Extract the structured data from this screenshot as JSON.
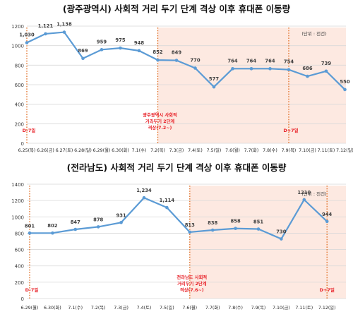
{
  "chart_data": [
    {
      "type": "line",
      "title": "(광주광역시) 사회적 거리 두기 단계 격상 이후 휴대폰 이동량",
      "unit_note": "(단위 : 천건)",
      "ylim": [
        0,
        1200
      ],
      "yticks": [
        0,
        200,
        400,
        600,
        800,
        1000,
        1200
      ],
      "grid": true,
      "categories": [
        "6.25(목)",
        "6.26(금)",
        "6.27(토)",
        "6.28(일)",
        "6.29(월)",
        "6.30(화)",
        "7.1(수)",
        "7.2(목)",
        "7.3(금)",
        "7.4(토)",
        "7.5(일)",
        "7.6(월)",
        "7.7(화)",
        "7.8(수)",
        "7.9(목)",
        "7.10(금)",
        "7.11(토)",
        "7.12(일)"
      ],
      "series": [
        {
          "name": "",
          "color": "#5b9bd5",
          "values": [
            1030,
            1121,
            1138,
            869,
            959,
            975,
            948,
            852,
            849,
            770,
            577,
            764,
            764,
            764,
            754,
            686,
            739,
            550
          ]
        }
      ],
      "data_labels": [
        "1,030",
        "1,121",
        "1,138",
        "869",
        "959",
        "975",
        "948",
        "852",
        "849",
        "770",
        "577",
        "764",
        "764",
        "764",
        "754",
        "686",
        "739",
        "550"
      ],
      "highlight_start_index": 7,
      "highlight_color": "#fde9e1",
      "annotations": [
        {
          "text": "D-7일",
          "index": 0
        },
        {
          "lines": [
            "광주광역시 사회적",
            "거리두기 2단계",
            "격상(7.2~)"
          ],
          "index": 7
        },
        {
          "text": "D+7일",
          "index": 14
        }
      ]
    },
    {
      "type": "line",
      "title": "(전라남도) 사회적 거리 두기 단계 격상 이후 휴대폰 이동량",
      "unit_note": "(단위 : 천건)",
      "ylim": [
        0,
        1400
      ],
      "yticks": [
        0,
        200,
        400,
        600,
        800,
        1000,
        1200,
        1400
      ],
      "grid": true,
      "categories": [
        "6.29(월)",
        "6.30(화)",
        "7.1(수)",
        "7.2(목)",
        "7.3(금)",
        "7.4(토)",
        "7.5(일)",
        "7.6(월)",
        "7.7(화)",
        "7.8(수)",
        "7.9(목)",
        "7.10(금)",
        "7.11(토)",
        "7.12(일)"
      ],
      "series": [
        {
          "name": "",
          "color": "#5b9bd5",
          "values": [
            801,
            802,
            847,
            878,
            931,
            1234,
            1114,
            813,
            838,
            858,
            851,
            730,
            1210,
            944
          ]
        }
      ],
      "data_labels": [
        "801",
        "802",
        "847",
        "878",
        "931",
        "1,234",
        "1,114",
        "813",
        "838",
        "858",
        "851",
        "730",
        "1210",
        "944"
      ],
      "highlight_start_index": 7,
      "highlight_color": "#fde9e1",
      "annotations": [
        {
          "text": "D-7일",
          "index": 0
        },
        {
          "lines": [
            "전라남도 사회적",
            "거리두기 2단계",
            "격상(7.6~)"
          ],
          "index": 7
        },
        {
          "text": "D+7일",
          "index": 13
        }
      ]
    }
  ]
}
